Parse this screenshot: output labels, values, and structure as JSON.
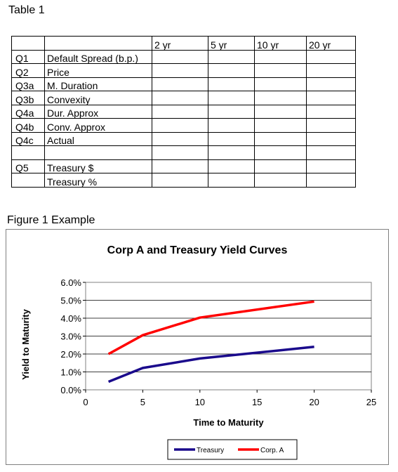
{
  "table": {
    "title": "Table 1",
    "headers": [
      "",
      "",
      "2 yr",
      "5 yr",
      "10 yr",
      "20 yr"
    ],
    "rows": [
      {
        "id": "Q1",
        "label": "Default Spread (b.p.)"
      },
      {
        "id": "Q2",
        "label": "Price"
      },
      {
        "id": "Q3a",
        "label": "M. Duration"
      },
      {
        "id": "Q3b",
        "label": "Convexity"
      },
      {
        "id": "Q4a",
        "label": "Dur. Approx"
      },
      {
        "id": "Q4b",
        "label": "Conv. Approx"
      },
      {
        "id": "Q4c",
        "label": "Actual"
      },
      {
        "id": "",
        "label": ""
      },
      {
        "id": "Q5",
        "label": "Treasury $"
      },
      {
        "id": "",
        "label": "Treasury %"
      }
    ]
  },
  "figure": {
    "title": "Figure 1 Example"
  },
  "chart_data": {
    "type": "line",
    "title": "Corp A and Treasury Yield Curves",
    "xlabel": "Time to Maturity",
    "ylabel": "Yield to Maturity",
    "xlim": [
      0,
      25
    ],
    "ylim": [
      0,
      0.06
    ],
    "x_ticks": [
      "0",
      "5",
      "10",
      "15",
      "20",
      "25"
    ],
    "y_ticks": [
      "0.0%",
      "1.0%",
      "2.0%",
      "3.0%",
      "4.0%",
      "5.0%",
      "6.0%"
    ],
    "grid": true,
    "legend": "bottom",
    "series": [
      {
        "name": "Treasury",
        "color": "#1a0a8c",
        "points": [
          [
            2,
            0.0045
          ],
          [
            5,
            0.0122
          ],
          [
            10,
            0.0175
          ],
          [
            20,
            0.024
          ]
        ]
      },
      {
        "name": "Corp. A",
        "color": "#ff0000",
        "points": [
          [
            2,
            0.02
          ],
          [
            5,
            0.0305
          ],
          [
            10,
            0.0403
          ],
          [
            20,
            0.0493
          ]
        ]
      }
    ]
  }
}
